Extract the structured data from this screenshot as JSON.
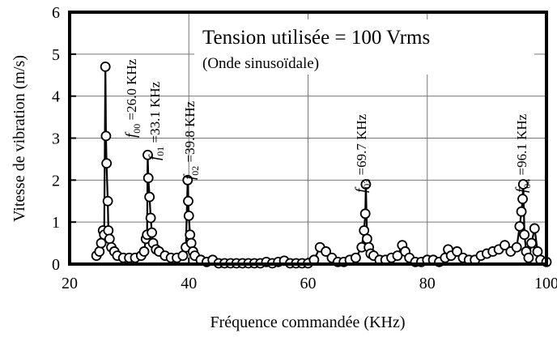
{
  "chart_data": {
    "type": "line",
    "x_label": "Fréquence commandée (KHz)",
    "y_label": "Vitesse de vibration (m/s)",
    "xlim": [
      20,
      100
    ],
    "xticks": [
      20,
      40,
      60,
      80,
      100
    ],
    "ylim": [
      0,
      6
    ],
    "yticks": [
      0,
      1,
      2,
      3,
      4,
      5,
      6
    ],
    "grid": true,
    "annotations": [
      {
        "text": "Tension utilisée = 100 Vrms"
      },
      {
        "text": "(Onde sinusoïdale)"
      },
      {
        "symbol": "f",
        "subscript": "00",
        "text": " =26.0 KHz"
      },
      {
        "symbol": "f",
        "subscript": "01",
        "text": " =33.1 KHz"
      },
      {
        "symbol": "f",
        "subscript": "02",
        "text": " =39.8 KHz"
      },
      {
        "symbol": "f",
        "subscript": "03",
        "text": " =69.7 KHz"
      },
      {
        "symbol": "f",
        "subscript": "04",
        "text": " =96.1 KHz"
      }
    ],
    "series": [
      {
        "color": "#000000",
        "x": [
          24.5,
          25,
          25.3,
          25.6,
          25.8,
          26.0,
          26.1,
          26.2,
          26.4,
          26.5,
          26.7,
          27,
          27.5,
          28,
          29,
          30,
          31,
          32,
          32.5,
          32.8,
          33.0,
          33.1,
          33.2,
          33.4,
          33.6,
          33.8,
          34,
          34.5,
          35,
          36,
          37,
          38,
          39,
          39.5,
          39.8,
          39.9,
          40.0,
          40.2,
          40.4,
          40.7,
          41,
          42,
          43,
          44,
          45,
          46,
          47,
          48,
          49,
          50,
          51,
          52,
          53,
          54,
          55,
          56,
          57,
          58,
          59,
          60,
          61,
          62,
          63,
          64,
          65,
          66,
          67,
          68,
          69,
          69.4,
          69.6,
          69.7,
          69.9,
          70.2,
          70.5,
          71,
          72,
          73,
          74,
          75,
          75.8,
          76.3,
          77,
          78,
          79,
          80,
          81,
          82,
          83,
          83.5,
          84,
          85,
          86,
          87,
          88,
          89,
          90,
          91,
          92,
          93,
          94,
          95,
          95.5,
          95.8,
          96.0,
          96.1,
          96.3,
          96.6,
          97,
          97.5,
          98,
          98.5,
          99,
          100
        ],
        "values": [
          0.2,
          0.3,
          0.5,
          0.8,
          0.7,
          4.7,
          3.05,
          2.4,
          1.5,
          0.8,
          0.6,
          0.4,
          0.3,
          0.2,
          0.15,
          0.15,
          0.15,
          0.2,
          0.3,
          0.6,
          0.7,
          2.6,
          2.05,
          1.6,
          1.1,
          0.75,
          0.5,
          0.35,
          0.3,
          0.2,
          0.15,
          0.15,
          0.2,
          0.4,
          2.0,
          1.5,
          1.15,
          0.7,
          0.5,
          0.3,
          0.2,
          0.1,
          0.05,
          0.1,
          0.02,
          0.02,
          0.02,
          0.02,
          0.02,
          0.02,
          0.02,
          0.02,
          0.05,
          0.02,
          0.05,
          0.08,
          0.02,
          0.02,
          0.02,
          0.02,
          0.1,
          0.4,
          0.3,
          0.15,
          0.05,
          0.05,
          0.1,
          0.15,
          0.4,
          0.8,
          1.2,
          1.9,
          0.6,
          0.4,
          0.25,
          0.2,
          0.1,
          0.1,
          0.15,
          0.2,
          0.45,
          0.3,
          0.15,
          0.05,
          0.05,
          0.1,
          0.1,
          0.05,
          0.15,
          0.35,
          0.2,
          0.3,
          0.15,
          0.1,
          0.1,
          0.2,
          0.25,
          0.3,
          0.35,
          0.45,
          0.3,
          0.4,
          0.9,
          1.25,
          1.55,
          1.9,
          0.7,
          0.3,
          0.15,
          0.5,
          0.85,
          0.3,
          0.1,
          0.05
        ]
      }
    ]
  }
}
